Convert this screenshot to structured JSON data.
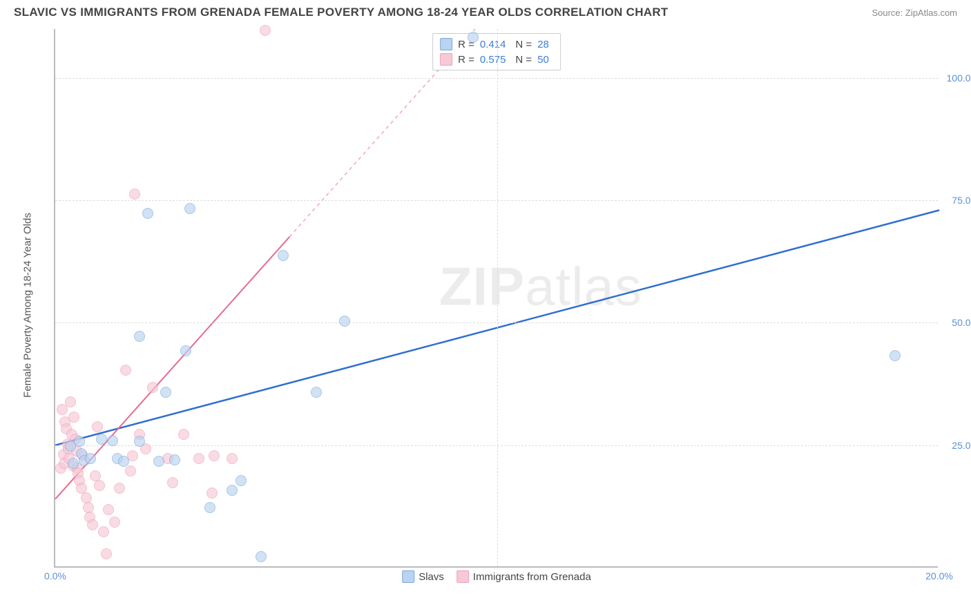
{
  "title": "SLAVIC VS IMMIGRANTS FROM GRENADA FEMALE POVERTY AMONG 18-24 YEAR OLDS CORRELATION CHART",
  "source": "Source: ZipAtlas.com",
  "watermark": "ZIPatlas",
  "y_axis_label": "Female Poverty Among 18-24 Year Olds",
  "chart": {
    "type": "scatter",
    "xlim": [
      0,
      20
    ],
    "ylim": [
      0,
      110
    ],
    "x_ticks": [
      0,
      20
    ],
    "x_tick_labels": [
      "0.0%",
      "20.0%"
    ],
    "y_ticks": [
      25,
      50,
      75,
      100
    ],
    "y_tick_labels": [
      "25.0%",
      "50.0%",
      "75.0%",
      "100.0%"
    ],
    "x_grid": [
      10
    ],
    "background_color": "#ffffff",
    "grid_color": "#dddddd",
    "axis_color": "#bbbbbb",
    "tick_color": "#5b8fd6",
    "marker_radius": 8,
    "series": [
      {
        "name": "Slavs",
        "fill": "#b9d3f0",
        "stroke": "#7aa8dd",
        "opacity": 0.65,
        "line_color": "#2f6fd0",
        "line_width": 2.5,
        "trend": {
          "x1": 0,
          "y1": 25,
          "x2": 20,
          "y2": 73,
          "dash_after_x": null
        },
        "R": "0.414",
        "N": "28",
        "points": [
          [
            0.35,
            24.5
          ],
          [
            0.4,
            21.0
          ],
          [
            0.55,
            25.5
          ],
          [
            0.6,
            23.0
          ],
          [
            0.65,
            21.6
          ],
          [
            0.8,
            22.0
          ],
          [
            1.05,
            26.0
          ],
          [
            1.3,
            25.6
          ],
          [
            1.4,
            22.0
          ],
          [
            1.55,
            21.5
          ],
          [
            1.9,
            47.0
          ],
          [
            1.9,
            25.5
          ],
          [
            2.1,
            72.0
          ],
          [
            2.35,
            21.5
          ],
          [
            2.5,
            35.5
          ],
          [
            2.7,
            21.7
          ],
          [
            2.95,
            44.0
          ],
          [
            3.05,
            73.0
          ],
          [
            3.5,
            12.0
          ],
          [
            4.0,
            15.5
          ],
          [
            4.2,
            17.5
          ],
          [
            4.65,
            2.0
          ],
          [
            5.15,
            63.5
          ],
          [
            5.9,
            35.5
          ],
          [
            6.55,
            50.0
          ],
          [
            9.45,
            108.0
          ],
          [
            19.0,
            43.0
          ]
        ]
      },
      {
        "name": "Immigrants from Grenada",
        "fill": "#f7c9d5",
        "stroke": "#ef9fb5",
        "opacity": 0.65,
        "line_color": "#e86a8d",
        "line_width": 2,
        "trend": {
          "x1": 0,
          "y1": 14,
          "x2": 9.5,
          "y2": 110,
          "dash_after_x": 5.3
        },
        "R": "0.575",
        "N": "50",
        "points": [
          [
            0.12,
            20.0
          ],
          [
            0.15,
            32.0
          ],
          [
            0.18,
            22.8
          ],
          [
            0.2,
            21.0
          ],
          [
            0.22,
            29.5
          ],
          [
            0.25,
            28.0
          ],
          [
            0.28,
            25.0
          ],
          [
            0.3,
            24.0
          ],
          [
            0.32,
            22.0
          ],
          [
            0.35,
            33.5
          ],
          [
            0.38,
            27.0
          ],
          [
            0.4,
            20.5
          ],
          [
            0.42,
            30.5
          ],
          [
            0.45,
            26.0
          ],
          [
            0.48,
            23.5
          ],
          [
            0.5,
            20.0
          ],
          [
            0.52,
            19.0
          ],
          [
            0.55,
            17.5
          ],
          [
            0.6,
            16.0
          ],
          [
            0.62,
            22.5
          ],
          [
            0.7,
            14.0
          ],
          [
            0.75,
            12.0
          ],
          [
            0.78,
            10.0
          ],
          [
            0.85,
            8.5
          ],
          [
            0.9,
            18.5
          ],
          [
            0.95,
            28.5
          ],
          [
            1.0,
            16.5
          ],
          [
            1.1,
            7.0
          ],
          [
            1.15,
            2.5
          ],
          [
            1.2,
            11.5
          ],
          [
            1.35,
            9.0
          ],
          [
            1.45,
            16.0
          ],
          [
            1.6,
            40.0
          ],
          [
            1.7,
            19.5
          ],
          [
            1.75,
            22.5
          ],
          [
            1.8,
            76.0
          ],
          [
            1.9,
            27.0
          ],
          [
            2.05,
            24.0
          ],
          [
            2.2,
            36.5
          ],
          [
            2.55,
            22.0
          ],
          [
            2.65,
            17.0
          ],
          [
            2.9,
            27.0
          ],
          [
            3.25,
            22.0
          ],
          [
            3.55,
            15.0
          ],
          [
            3.6,
            22.5
          ],
          [
            4.0,
            22.0
          ],
          [
            4.75,
            109.5
          ]
        ]
      }
    ]
  },
  "legend_stats": [
    {
      "color_fill": "#b9d3f0",
      "color_stroke": "#7aa8dd",
      "R_label": "R =",
      "R": "0.414",
      "N_label": "N =",
      "N": "28"
    },
    {
      "color_fill": "#f7c9d5",
      "color_stroke": "#ef9fb5",
      "R_label": "R =",
      "R": "0.575",
      "N_label": "N =",
      "N": "50"
    }
  ],
  "legend_bottom": [
    {
      "fill": "#b9d3f0",
      "stroke": "#7aa8dd",
      "label": "Slavs"
    },
    {
      "fill": "#f7c9d5",
      "stroke": "#ef9fb5",
      "label": "Immigrants from Grenada"
    }
  ]
}
